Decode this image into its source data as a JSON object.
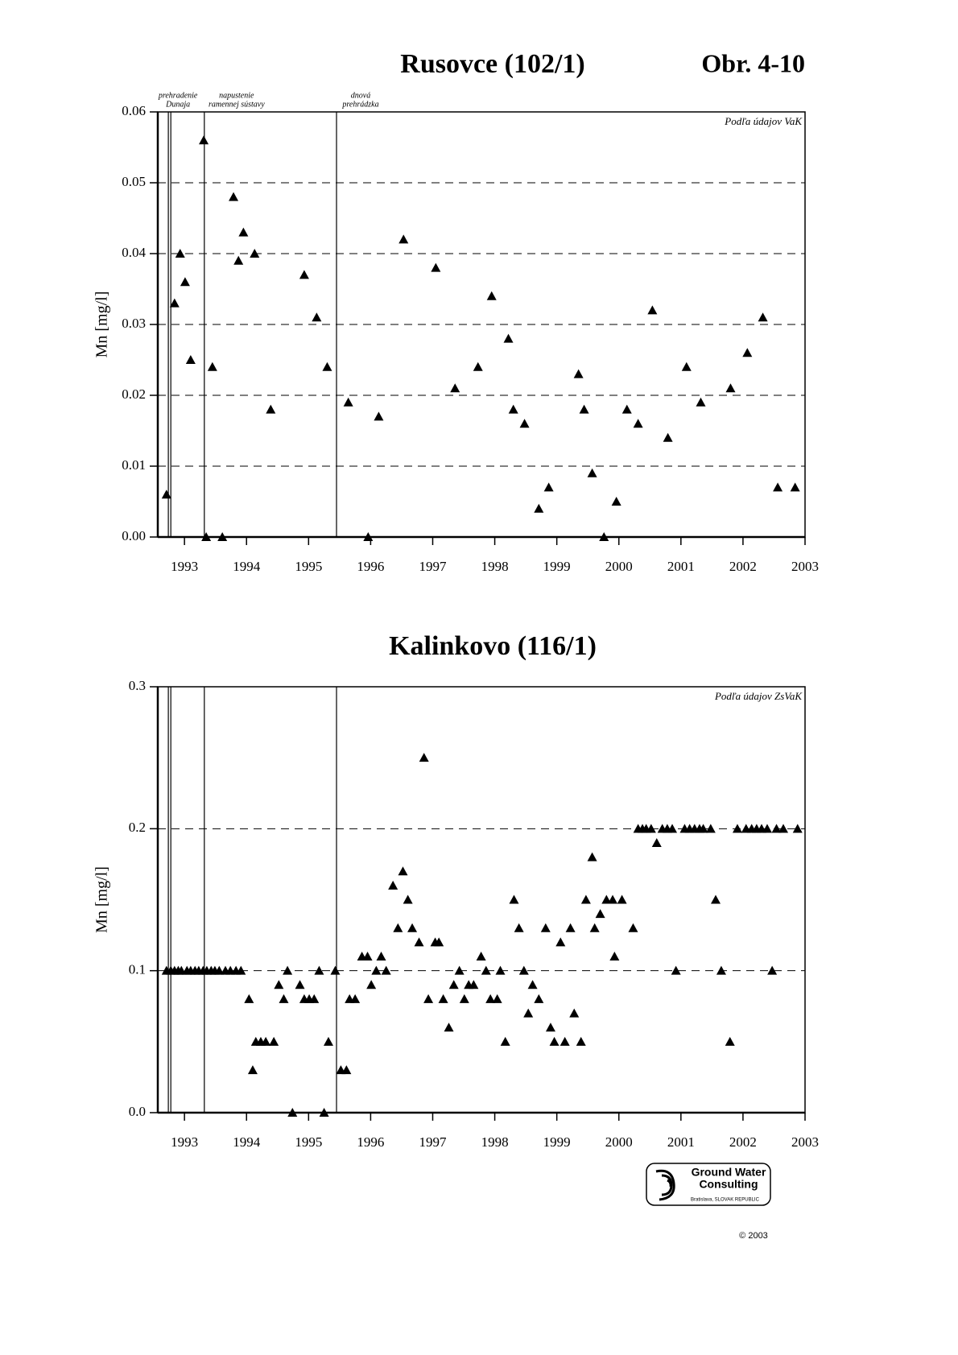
{
  "figure_label": "Obr. 4-10",
  "chart_data": [
    {
      "type": "scatter",
      "title": "Rusovce (102/1)",
      "y_label": "Mn [mg/l]",
      "note": "Podľa údajov VaK",
      "xlim": [
        1992.57,
        2003
      ],
      "xticks": [
        1993,
        1994,
        1995,
        1996,
        1997,
        1998,
        1999,
        2000,
        2001,
        2002,
        2003
      ],
      "ylim": [
        0,
        0.06
      ],
      "yticks": [
        {
          "value": 0,
          "label": "0.00"
        },
        0.01,
        0.02,
        0.03,
        0.04,
        0.05,
        0.06
      ],
      "grid": true,
      "color": "#000000",
      "event_lines": [
        {
          "x": 1992.74,
          "label": [
            "prehradenie",
            "Dunaja"
          ]
        },
        {
          "x": 1992.78
        },
        {
          "x": 1993.32,
          "label": [
            "napustenie",
            "ramennej sústavy"
          ]
        },
        {
          "x": 1995.45,
          "label": [
            "dnová",
            "prehrádzka"
          ]
        }
      ],
      "x": [
        1992.71,
        1992.84,
        1992.93,
        1993.01,
        1993.1,
        1993.31,
        1993.35,
        1993.45,
        1993.61,
        1993.79,
        1993.87,
        1993.95,
        1994.13,
        1994.39,
        1994.93,
        1995.13,
        1995.3,
        1995.64,
        1995.96,
        1996.13,
        1996.53,
        1997.05,
        1997.36,
        1997.73,
        1997.95,
        1998.22,
        1998.3,
        1998.48,
        1998.71,
        1998.87,
        1999.35,
        1999.44,
        1999.57,
        1999.76,
        1999.96,
        2000.13,
        2000.31,
        2000.54,
        2000.79,
        2001.09,
        2001.32,
        2001.8,
        2002.07,
        2002.32,
        2002.56,
        2002.84
      ],
      "values": [
        0.006,
        0.033,
        0.04,
        0.036,
        0.025,
        0.056,
        0.0,
        0.024,
        0.0,
        0.048,
        0.039,
        0.043,
        0.04,
        0.018,
        0.037,
        0.031,
        0.024,
        0.019,
        0.0,
        0.017,
        0.042,
        0.038,
        0.021,
        0.024,
        0.034,
        0.028,
        0.018,
        0.016,
        0.004,
        0.007,
        0.023,
        0.018,
        0.009,
        0.0,
        0.005,
        0.018,
        0.016,
        0.032,
        0.014,
        0.024,
        0.019,
        0.021,
        0.026,
        0.031,
        0.007,
        0.007
      ]
    },
    {
      "type": "scatter",
      "title": "Kalinkovo (116/1)",
      "y_label": "Mn [mg/l]",
      "note": "Podľa údajov ZsVaK",
      "xlim": [
        1992.57,
        2003
      ],
      "xticks": [
        1993,
        1994,
        1995,
        1996,
        1997,
        1998,
        1999,
        2000,
        2001,
        2002,
        2003
      ],
      "ylim": [
        0,
        0.3
      ],
      "yticks": [
        {
          "value": 0,
          "label": "0.0"
        },
        0.1,
        0.2,
        0.3
      ],
      "grid": true,
      "color": "#000000",
      "event_lines": [
        {
          "x": 1992.74
        },
        {
          "x": 1992.78
        },
        {
          "x": 1993.32
        },
        {
          "x": 1995.45
        }
      ],
      "x": [
        1992.71,
        1992.78,
        1992.84,
        1992.9,
        1992.95,
        1993.04,
        1993.1,
        1993.17,
        1993.23,
        1993.3,
        1993.36,
        1993.43,
        1993.49,
        1993.56,
        1993.66,
        1993.74,
        1993.83,
        1993.91,
        1994.04,
        1994.1,
        1994.15,
        1994.23,
        1994.31,
        1994.44,
        1994.52,
        1994.6,
        1994.66,
        1994.74,
        1994.86,
        1994.93,
        1995.01,
        1995.09,
        1995.17,
        1995.25,
        1995.32,
        1995.43,
        1995.52,
        1995.61,
        1995.66,
        1995.75,
        1995.86,
        1995.95,
        1996.01,
        1996.09,
        1996.17,
        1996.25,
        1996.36,
        1996.44,
        1996.52,
        1996.6,
        1996.67,
        1996.78,
        1996.86,
        1996.93,
        1997.04,
        1997.1,
        1997.17,
        1997.26,
        1997.34,
        1997.43,
        1997.51,
        1997.58,
        1997.66,
        1997.78,
        1997.86,
        1997.93,
        1998.04,
        1998.09,
        1998.17,
        1998.31,
        1998.39,
        1998.47,
        1998.54,
        1998.61,
        1998.71,
        1998.82,
        1998.9,
        1998.96,
        1999.06,
        1999.13,
        1999.22,
        1999.28,
        1999.39,
        1999.47,
        1999.57,
        1999.61,
        1999.7,
        1999.8,
        1999.9,
        1999.93,
        2000.05,
        2000.23,
        2000.31,
        2000.38,
        2000.44,
        2000.52,
        2000.61,
        2000.7,
        2000.78,
        2000.86,
        2000.92,
        2001.06,
        2001.14,
        2001.22,
        2001.3,
        2001.36,
        2001.48,
        2001.56,
        2001.65,
        2001.79,
        2001.91,
        2002.05,
        2002.14,
        2002.22,
        2002.3,
        2002.39,
        2002.47,
        2002.54,
        2002.65,
        2002.88
      ],
      "values": [
        0.1,
        0.1,
        0.1,
        0.1,
        0.1,
        0.1,
        0.1,
        0.1,
        0.1,
        0.1,
        0.1,
        0.1,
        0.1,
        0.1,
        0.1,
        0.1,
        0.1,
        0.1,
        0.08,
        0.03,
        0.05,
        0.05,
        0.05,
        0.05,
        0.09,
        0.08,
        0.1,
        0.0,
        0.09,
        0.08,
        0.08,
        0.08,
        0.1,
        0.0,
        0.05,
        0.1,
        0.03,
        0.03,
        0.08,
        0.08,
        0.11,
        0.11,
        0.09,
        0.1,
        0.11,
        0.1,
        0.16,
        0.13,
        0.17,
        0.15,
        0.13,
        0.12,
        0.25,
        0.08,
        0.12,
        0.12,
        0.08,
        0.06,
        0.09,
        0.1,
        0.08,
        0.09,
        0.09,
        0.11,
        0.1,
        0.08,
        0.08,
        0.1,
        0.05,
        0.15,
        0.13,
        0.1,
        0.07,
        0.09,
        0.08,
        0.13,
        0.06,
        0.05,
        0.12,
        0.05,
        0.13,
        0.07,
        0.05,
        0.15,
        0.18,
        0.13,
        0.14,
        0.15,
        0.15,
        0.11,
        0.15,
        0.13,
        0.2,
        0.2,
        0.2,
        0.2,
        0.19,
        0.2,
        0.2,
        0.2,
        0.1,
        0.2,
        0.2,
        0.2,
        0.2,
        0.2,
        0.2,
        0.15,
        0.1,
        0.05,
        0.2,
        0.2,
        0.2,
        0.2,
        0.2,
        0.2,
        0.1,
        0.2,
        0.2,
        0.2
      ]
    }
  ],
  "logo": {
    "line1": "Ground Water",
    "line2": "Consulting",
    "place": "Bratislava, SLOVAK REPUBLIC"
  },
  "copyright": "© 2003"
}
